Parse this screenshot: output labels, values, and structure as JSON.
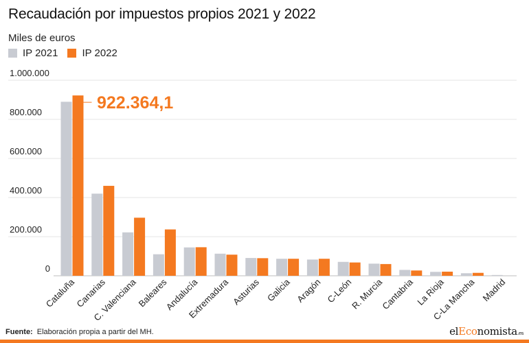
{
  "chart_data": {
    "type": "bar",
    "title": "Recaudación por impuestos propios 2021 y 2022",
    "subtitle": "Miles de euros",
    "categories": [
      "Cataluña",
      "Canarias",
      "C. Valenciana",
      "Baleares",
      "Andalucía",
      "Extremadura",
      "Asturias",
      "Galicia",
      "Aragón",
      "C-León",
      "R. Murcia",
      "Cantabria",
      "La Rioja",
      "C-La Mancha",
      "Madrid"
    ],
    "series": [
      {
        "name": "IP 2021",
        "color": "#c8cbd2",
        "values": [
          890000,
          420000,
          222000,
          110000,
          145000,
          113000,
          91000,
          87000,
          83000,
          71000,
          62000,
          30000,
          20000,
          13000,
          4000
        ]
      },
      {
        "name": "IP 2022",
        "color": "#f47920",
        "values": [
          922364.1,
          460000,
          297000,
          237000,
          146000,
          108000,
          90000,
          87000,
          87000,
          68000,
          60000,
          27000,
          21000,
          15000,
          0
        ]
      }
    ],
    "ylim": [
      0,
      1000000
    ],
    "yticks": [
      0,
      200000,
      400000,
      600000,
      800000,
      1000000
    ],
    "ytick_labels": [
      "0",
      "200.000",
      "400.000",
      "600.000",
      "800.000",
      "1.000.000"
    ],
    "grid": true,
    "legend_position": "top-left",
    "annotation": {
      "category": "Cataluña",
      "series": "IP 2022",
      "text": "922.364,1"
    }
  },
  "footer": {
    "source_label": "Fuente:",
    "source_text": "Elaboración propia a partir del MH.",
    "brand_pre": "el",
    "brand_accent": "Eco",
    "brand_post": "nomista",
    "brand_suffix": ".es"
  }
}
